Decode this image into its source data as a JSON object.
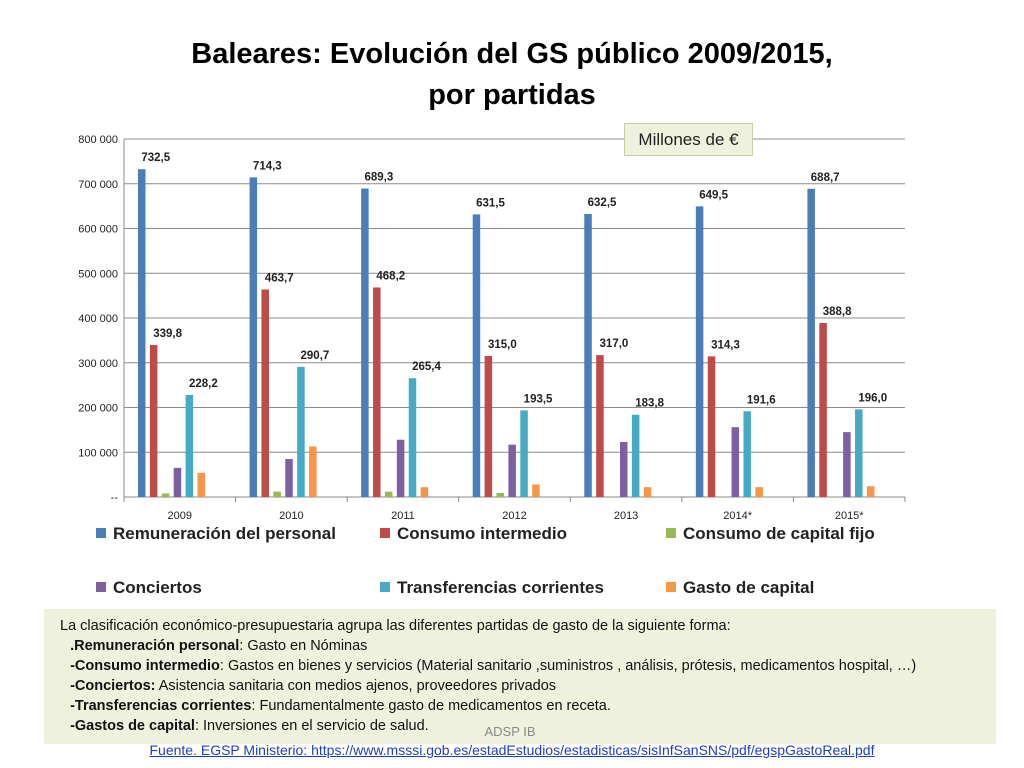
{
  "title": {
    "line1": "Baleares: Evolución del GS público 2009/2015,",
    "line2": "por partidas"
  },
  "units_badge": "Millones de €",
  "chart_data": {
    "type": "bar",
    "title": "Baleares: Evolución del GS público 2009/2015, por partidas",
    "categories": [
      "2009",
      "2010",
      "2011",
      "2012",
      "2013",
      "2014*",
      "2015*"
    ],
    "ylim": [
      0,
      800000
    ],
    "yticks": [
      0,
      100000,
      200000,
      300000,
      400000,
      500000,
      600000,
      700000,
      800000
    ],
    "ytick_labels": [
      "--",
      "100 000",
      "200 000",
      "300 000",
      "400 000",
      "500 000",
      "600 000",
      "700 000",
      "800 000"
    ],
    "grid": true,
    "legend_position": "bottom",
    "series": [
      {
        "name": "Remuneración del personal",
        "color": "#4a7ebb",
        "values": [
          732500,
          714300,
          689300,
          631500,
          632500,
          649500,
          688700
        ],
        "labels": [
          "732,5",
          "714,3",
          "689,3",
          "631,5",
          "632,5",
          "649,5",
          "688,7"
        ]
      },
      {
        "name": "Consumo intermedio",
        "color": "#be4b48",
        "values": [
          339800,
          463700,
          468200,
          315000,
          317000,
          314300,
          388800
        ],
        "labels": [
          "339,8",
          "463,7",
          "468,2",
          "315,0",
          "317,0",
          "314,3",
          "388,8"
        ]
      },
      {
        "name": "Consumo de capital fijo",
        "color": "#98b954",
        "values": [
          8000,
          12000,
          12000,
          9000,
          0,
          0,
          0
        ],
        "labels": []
      },
      {
        "name": "Conciertos",
        "color": "#7d60a0",
        "values": [
          65000,
          85000,
          128000,
          117000,
          123000,
          156000,
          145000
        ],
        "labels": []
      },
      {
        "name": "Transferencias corrientes",
        "color": "#46aac5",
        "values": [
          228200,
          290700,
          265400,
          193500,
          183800,
          191600,
          196000
        ],
        "labels": [
          "228,2",
          "290,7",
          "265,4",
          "193,5",
          "183,8",
          "191,6",
          "196,0"
        ]
      },
      {
        "name": "Gasto de capital",
        "color": "#f79646",
        "values": [
          54000,
          113000,
          22000,
          28000,
          22000,
          22000,
          24000
        ],
        "labels": []
      }
    ]
  },
  "note": {
    "intro": "La clasificación económico-presupuestaria  agrupa  las diferentes partidas  de gasto de la siguiente forma:",
    "items": [
      {
        "term": ".Remuneración personal",
        "desc": ": Gasto en Nóminas"
      },
      {
        "term": "-Consumo intermedio",
        "desc": ": Gastos en bienes y servicios  (Material sanitario ,suministros , análisis, prótesis, medicamentos  hospital,  …)"
      },
      {
        "term": "-Conciertos:",
        "desc": " Asistencia sanitaria con medios ajenos, proveedores privados"
      },
      {
        "term": "-Transferencias corrientes",
        "desc": ": Fundamentalmente gasto de medicamentos en receta."
      },
      {
        "term": "-Gastos de capital",
        "desc": ":  Inversiones en el servicio de salud."
      }
    ]
  },
  "footer_mark": "ADSP IB",
  "source": "Fuente. EGSP Ministerio: https://www.msssi.gob.es/estadEstudios/estadisticas/sisInfSanSNS/pdf/egspGastoReal.pdf"
}
